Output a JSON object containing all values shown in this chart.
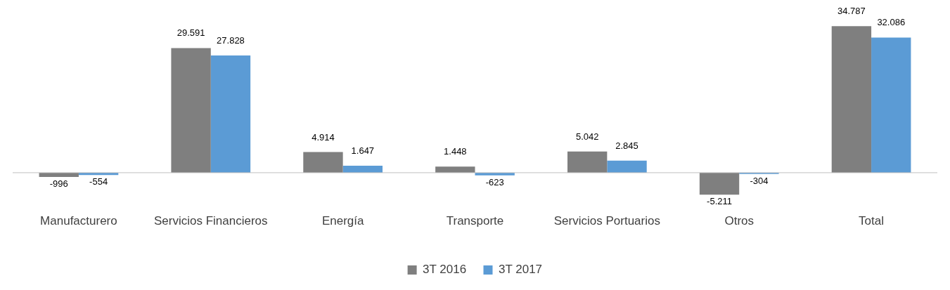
{
  "chart_data": {
    "type": "bar",
    "categories": [
      "Manufacturero",
      "Servicios Financieros",
      "Energía",
      "Transporte",
      "Servicios Portuarios",
      "Otros",
      "Total"
    ],
    "series": [
      {
        "name": "3T 2016",
        "color": "#7f7f7f",
        "values": [
          -996,
          29591,
          4914,
          1448,
          5042,
          -5211,
          34787
        ],
        "value_labels": [
          "-996",
          "29.591",
          "4.914",
          "1.448",
          "5.042",
          "-5.211",
          "34.787"
        ]
      },
      {
        "name": "3T 2017",
        "color": "#5b9bd5",
        "values": [
          -554,
          27828,
          1647,
          -623,
          2845,
          -304,
          32086
        ],
        "value_labels": [
          "-554",
          "27.828",
          "1.647",
          "-623",
          "2.845",
          "-304",
          "32.086"
        ]
      }
    ],
    "legend": "bottom",
    "grid": false
  }
}
